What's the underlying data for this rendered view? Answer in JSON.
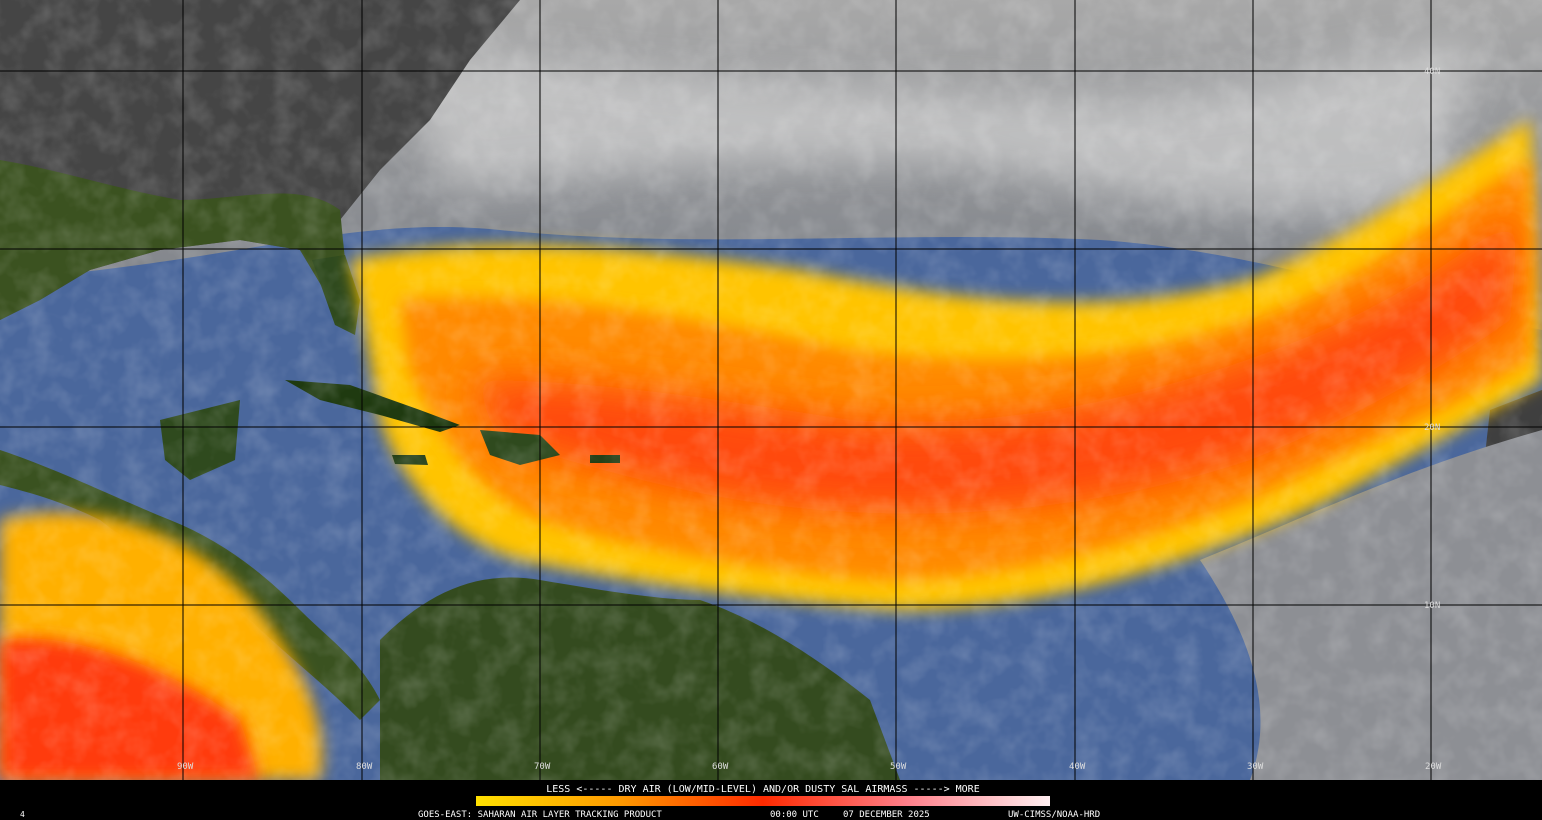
{
  "map": {
    "lat_labels": [
      "40N",
      "20N",
      "10N"
    ],
    "lon_labels": [
      "90W",
      "80W",
      "70W",
      "60W",
      "50W",
      "40W",
      "30W",
      "20W"
    ],
    "legend": "LESS <----- DRY AIR (LOW/MID-LEVEL) AND/OR DUSTY SAL AIRMASS -----> MORE",
    "footer": {
      "frame": "4",
      "product": "GOES-EAST: SAHARAN AIR LAYER TRACKING PRODUCT",
      "time": "00:00 UTC",
      "date": "07 DECEMBER 2025",
      "credit": "UW-CIMSS/NOAA-HRD"
    }
  }
}
